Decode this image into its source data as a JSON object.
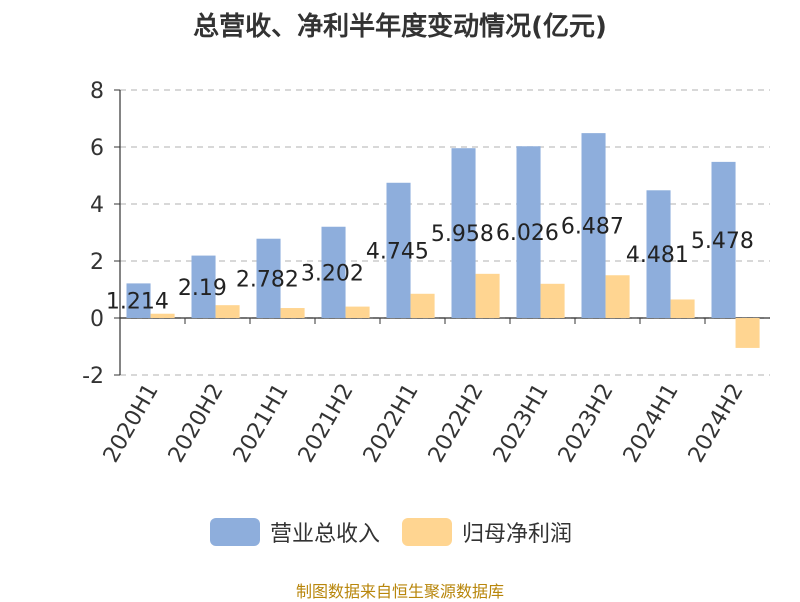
{
  "title": "总营收、净利半年度变动情况(亿元)",
  "source": "制图数据来自恒生聚源数据库",
  "colors": {
    "revenue": "#8eaedc",
    "profit": "#ffd591",
    "grid": "#cccccc",
    "axis": "#333333"
  },
  "chart_data": {
    "type": "bar",
    "categories": [
      "2020H1",
      "2020H2",
      "2021H1",
      "2021H2",
      "2022H1",
      "2022H2",
      "2023H1",
      "2023H2",
      "2024H1",
      "2024H2"
    ],
    "series": [
      {
        "name": "营业总收入",
        "values": [
          1.214,
          2.19,
          2.782,
          3.202,
          4.745,
          5.958,
          6.026,
          6.487,
          4.481,
          5.478
        ],
        "labels": [
          "1.214",
          "2.19",
          "2.782",
          "3.202",
          "4.745",
          "5.958",
          "6.026",
          "6.487",
          "4.481",
          "5.478"
        ]
      },
      {
        "name": "归母净利润",
        "values": [
          0.15,
          0.45,
          0.35,
          0.4,
          0.85,
          1.55,
          1.2,
          1.5,
          0.65,
          -1.05
        ]
      }
    ],
    "ylim": [
      -2,
      8
    ],
    "yticks": [
      "-2",
      "0",
      "2",
      "4",
      "6",
      "8"
    ],
    "grid": true,
    "legend_position": "bottom"
  }
}
